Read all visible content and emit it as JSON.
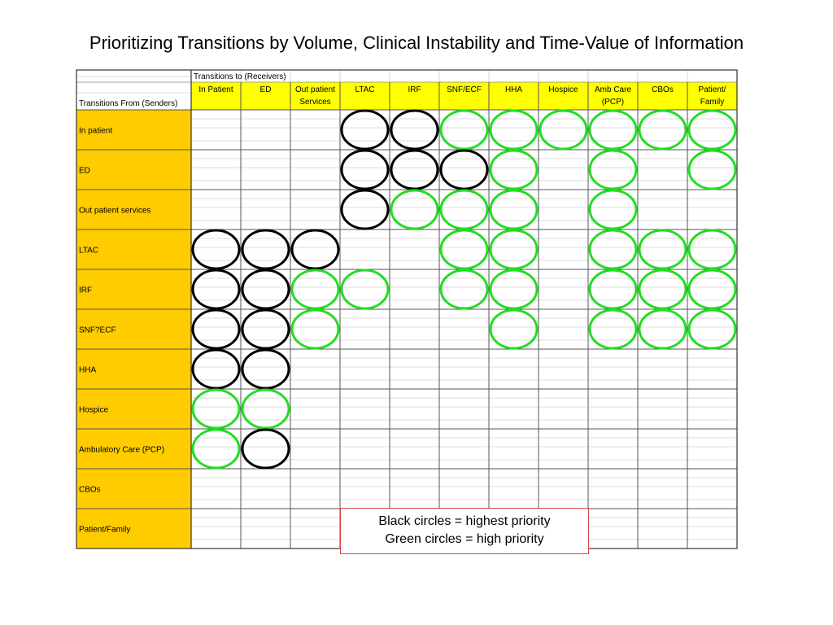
{
  "slide": {
    "title": "Prioritizing Transitions by Volume, Clinical Instability and Time-Value of Information"
  },
  "matrix": {
    "receivers_header": "Transitions to (Receivers)",
    "senders_header": "Transitions From (Senders)",
    "columns": [
      [
        "In Patient"
      ],
      [
        "ED"
      ],
      [
        "Out patient",
        "Services"
      ],
      [
        "LTAC"
      ],
      [
        "IRF"
      ],
      [
        "SNF/ECF"
      ],
      [
        "HHA"
      ],
      [
        "Hospice"
      ],
      [
        "Amb Care",
        "(PCP)"
      ],
      [
        "CBOs"
      ],
      [
        "Patient/",
        "Family"
      ]
    ],
    "rows": [
      "In patient",
      "ED",
      "Out patient services",
      "LTAC",
      "IRF",
      "SNF?ECF",
      "HHA",
      "Hospice",
      "Ambulatory Care (PCP)",
      "CBOs",
      "Patient/Family"
    ],
    "priority_codes": {
      "B": "highest priority",
      "G": "high priority",
      "N": "none"
    },
    "priority_grid": [
      "NNNBBGGGGGG",
      "NNNBBBGNGNG",
      "NNNBGGGNGNN",
      "BBBNNGGNGGG",
      "BBGGNGGNGGG",
      "BBGNNNGNGGG",
      "BBNNNNNNNNN",
      "GGNNNNNNNNN",
      "GBNNNNNNNNN",
      "NNNNNNNNNNN",
      "NNNNNNNNNNN"
    ]
  },
  "legend": {
    "line1": "Black circles = highest priority",
    "line2": "Green circles = high priority"
  },
  "colors": {
    "sender_fill": "#FFCC00",
    "receiver_fill": "#FFFF00",
    "highest": "#000000",
    "high": "#22dd22",
    "grid_line": "#888888"
  }
}
